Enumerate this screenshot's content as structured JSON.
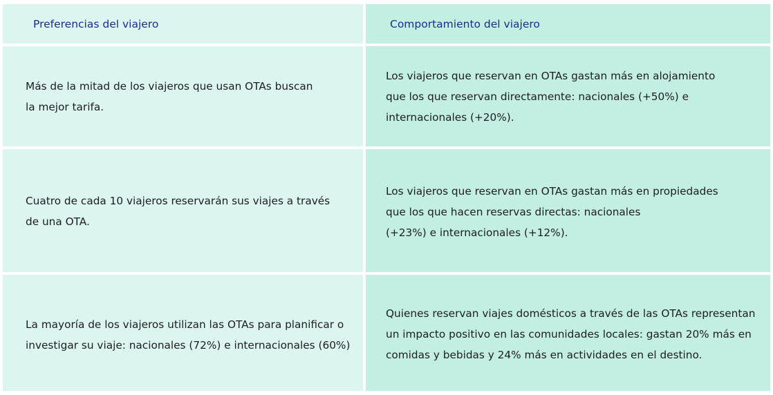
{
  "header": {
    "left": "Preferencias del viajero",
    "right": "Comportamiento del viajero"
  },
  "rows": [
    {
      "left": [
        "Más de la mitad de los viajeros que usan OTAs buscan",
        "la mejor tarifa."
      ],
      "right": [
        "Los viajeros que reservan en OTAs gastan más en alojamiento",
        "que los que reservan directamente: nacionales  (+50%) e",
        "internacionales (+20%)."
      ]
    },
    {
      "left": [
        "Cuatro de cada 10 viajeros reservarán sus viajes a través",
        "de una OTA."
      ],
      "right": [
        "Los viajeros que reservan en OTAs gastan más en propiedades",
        "que los que hacen reservas directas: nacionales",
        "(+23%) e internacionales (+12%)."
      ]
    },
    {
      "left": [
        "La mayoría de los viajeros utilizan las OTAs para planificar o",
        "investigar su viaje: nacionales (72%) e internacionales (60%)"
      ],
      "right": [
        "Quienes reservan viajes domésticos a través de las OTAs representan",
        "un impacto positivo en las comunidades locales: gastan 20% más en",
        "comidas y bebidas y 24% más en actividades en el destino."
      ]
    }
  ]
}
